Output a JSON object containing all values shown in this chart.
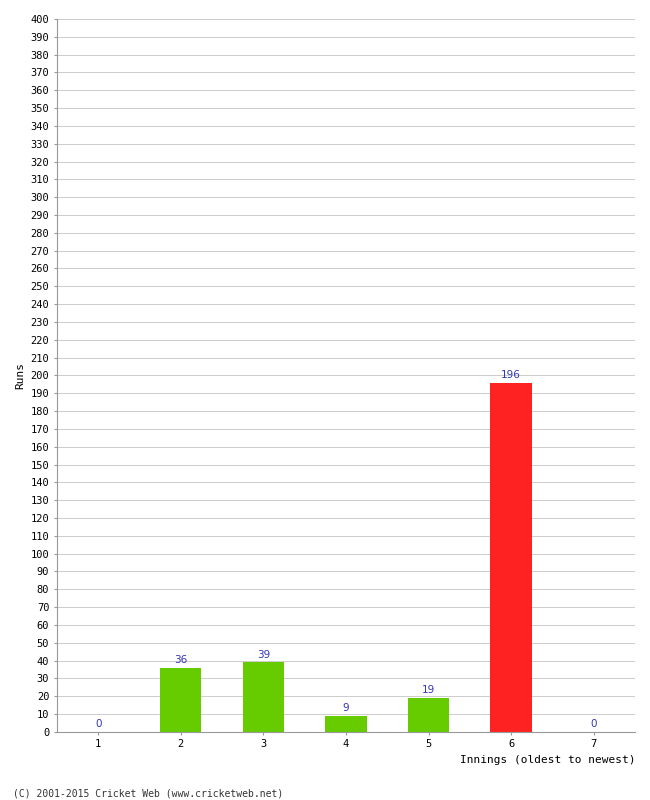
{
  "categories": [
    "1",
    "2",
    "3",
    "4",
    "5",
    "6",
    "7"
  ],
  "values": [
    0,
    36,
    39,
    9,
    19,
    196,
    0
  ],
  "bar_colors": [
    "#66cc00",
    "#66cc00",
    "#66cc00",
    "#66cc00",
    "#66cc00",
    "#ff2222",
    "#66cc00"
  ],
  "ylabel": "Runs",
  "xlabel": "Innings (oldest to newest)",
  "ylim": [
    0,
    400
  ],
  "ytick_step": 10,
  "ytick_label_step": 10,
  "label_color": "#3333bb",
  "label_fontsize": 7.5,
  "axis_label_fontsize": 8,
  "tick_fontsize": 7.5,
  "footer": "(C) 2001-2015 Cricket Web (www.cricketweb.net)",
  "background_color": "#ffffff",
  "grid_color": "#cccccc",
  "bar_width": 0.5
}
